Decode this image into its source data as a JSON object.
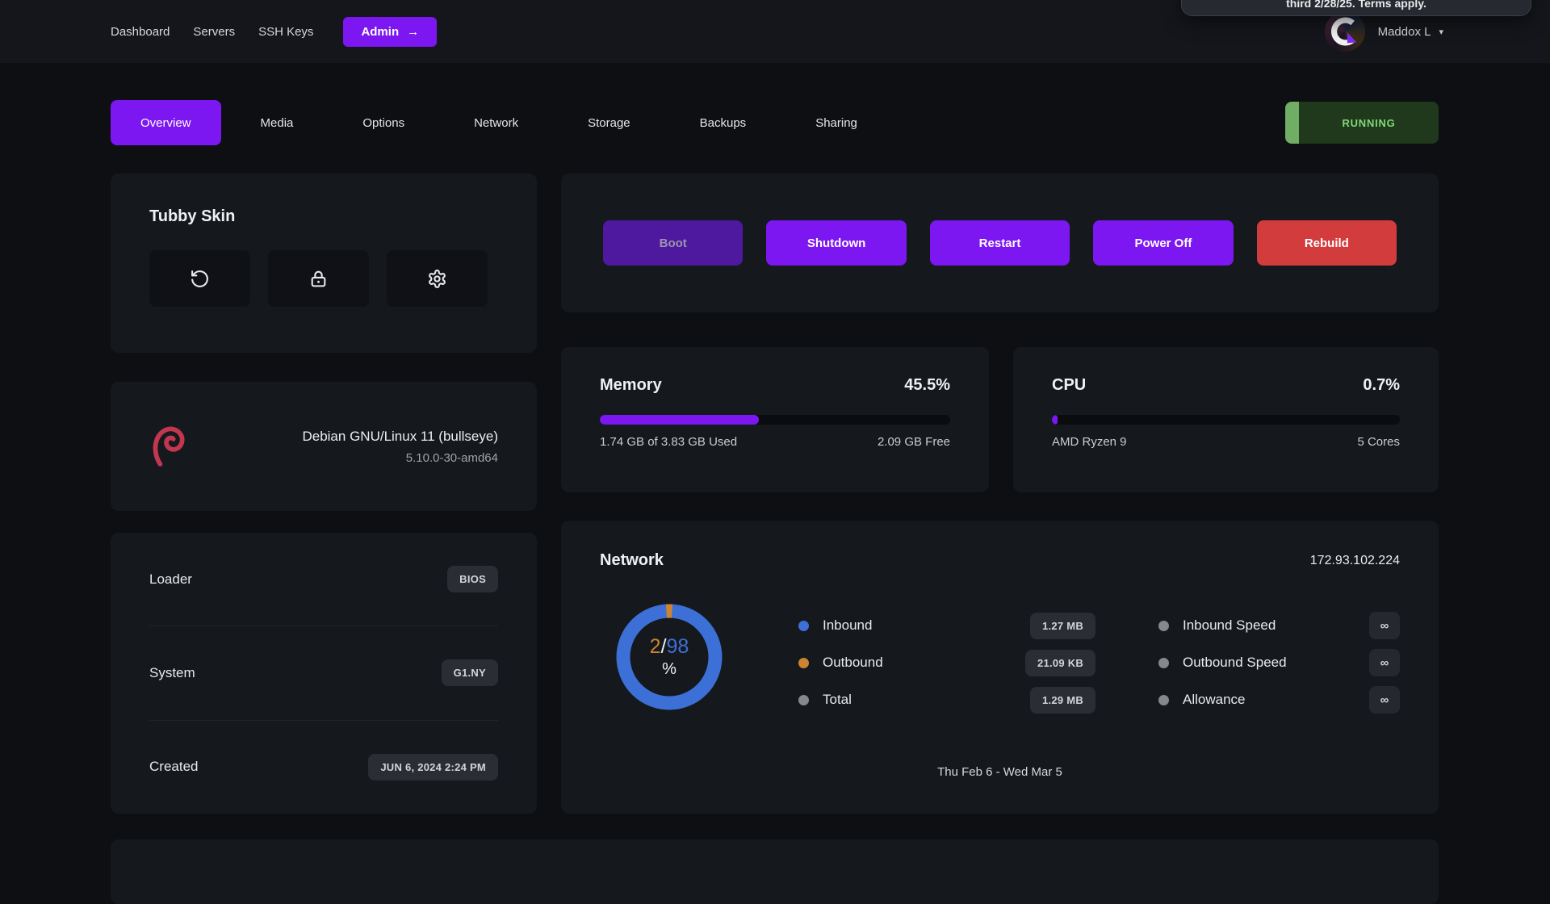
{
  "toast": {
    "text": "third 2/28/25. Terms apply."
  },
  "nav": {
    "links": [
      {
        "label": "Dashboard"
      },
      {
        "label": "Servers"
      },
      {
        "label": "SSH Keys"
      }
    ],
    "admin_button": {
      "label": "Admin",
      "arrow": "→"
    },
    "user": {
      "name": "Maddox L",
      "caret": "▾"
    }
  },
  "tabs": [
    {
      "label": "Overview",
      "active": true
    },
    {
      "label": "Media"
    },
    {
      "label": "Options"
    },
    {
      "label": "Network"
    },
    {
      "label": "Storage"
    },
    {
      "label": "Backups"
    },
    {
      "label": "Sharing"
    }
  ],
  "status": {
    "label": "RUNNING"
  },
  "server_card": {
    "title": "Tubby Skin",
    "icons": [
      "rotate-ccw-icon",
      "lock-icon",
      "gear-icon"
    ]
  },
  "os_card": {
    "distro": "Debian GNU/Linux 11 (bullseye)",
    "kernel": "5.10.0-30-amd64",
    "logo": "debian-swirl"
  },
  "details_card": {
    "rows": [
      {
        "label": "Loader",
        "value": "BIOS"
      },
      {
        "label": "System",
        "value": "G1.NY"
      },
      {
        "label": "Created",
        "value": "JUN 6, 2024 2:24 PM"
      }
    ]
  },
  "power_actions": {
    "boot": "Boot",
    "shutdown": "Shutdown",
    "restart": "Restart",
    "power_off": "Power Off",
    "rebuild": "Rebuild"
  },
  "memory": {
    "title": "Memory",
    "percent_label": "45.5%",
    "bar_percent": 45.5,
    "used_label": "1.74 GB of 3.83 GB Used",
    "free_label": "2.09 GB Free"
  },
  "cpu": {
    "title": "CPU",
    "percent_label": "0.7%",
    "bar_percent": 0.7,
    "left_label": "AMD Ryzen 9",
    "right_label": "5 Cores"
  },
  "network": {
    "title": "Network",
    "ip": "172.93.102.224",
    "donut": {
      "outbound_pct": 2,
      "inbound_pct": 98,
      "center_outbound": "2",
      "center_divider": "/",
      "center_inbound": "98",
      "center_unit": "%"
    },
    "legend_left": [
      {
        "label": "Inbound",
        "value": "1.27 MB",
        "color": "#3c70d6"
      },
      {
        "label": "Outbound",
        "value": "21.09 KB",
        "color": "#cb8432"
      },
      {
        "label": "Total",
        "value": "1.29 MB",
        "color": "#85888d"
      }
    ],
    "legend_right": [
      {
        "label": "Inbound Speed",
        "value": "∞",
        "color": "#85888d"
      },
      {
        "label": "Outbound Speed",
        "value": "∞",
        "color": "#85888d"
      },
      {
        "label": "Allowance",
        "value": "∞",
        "color": "#85888d"
      }
    ],
    "date_range": "Thu Feb 6 - Wed Mar 5"
  },
  "colors": {
    "accent": "#7c17f2",
    "accent_disabled": "#4e189f",
    "danger": "#d23c3c",
    "running_bg": "#20391c",
    "running_strip": "#6fae64",
    "running_text": "#7fd878",
    "donut_inbound": "#3c70d6",
    "donut_outbound": "#cb8432"
  }
}
